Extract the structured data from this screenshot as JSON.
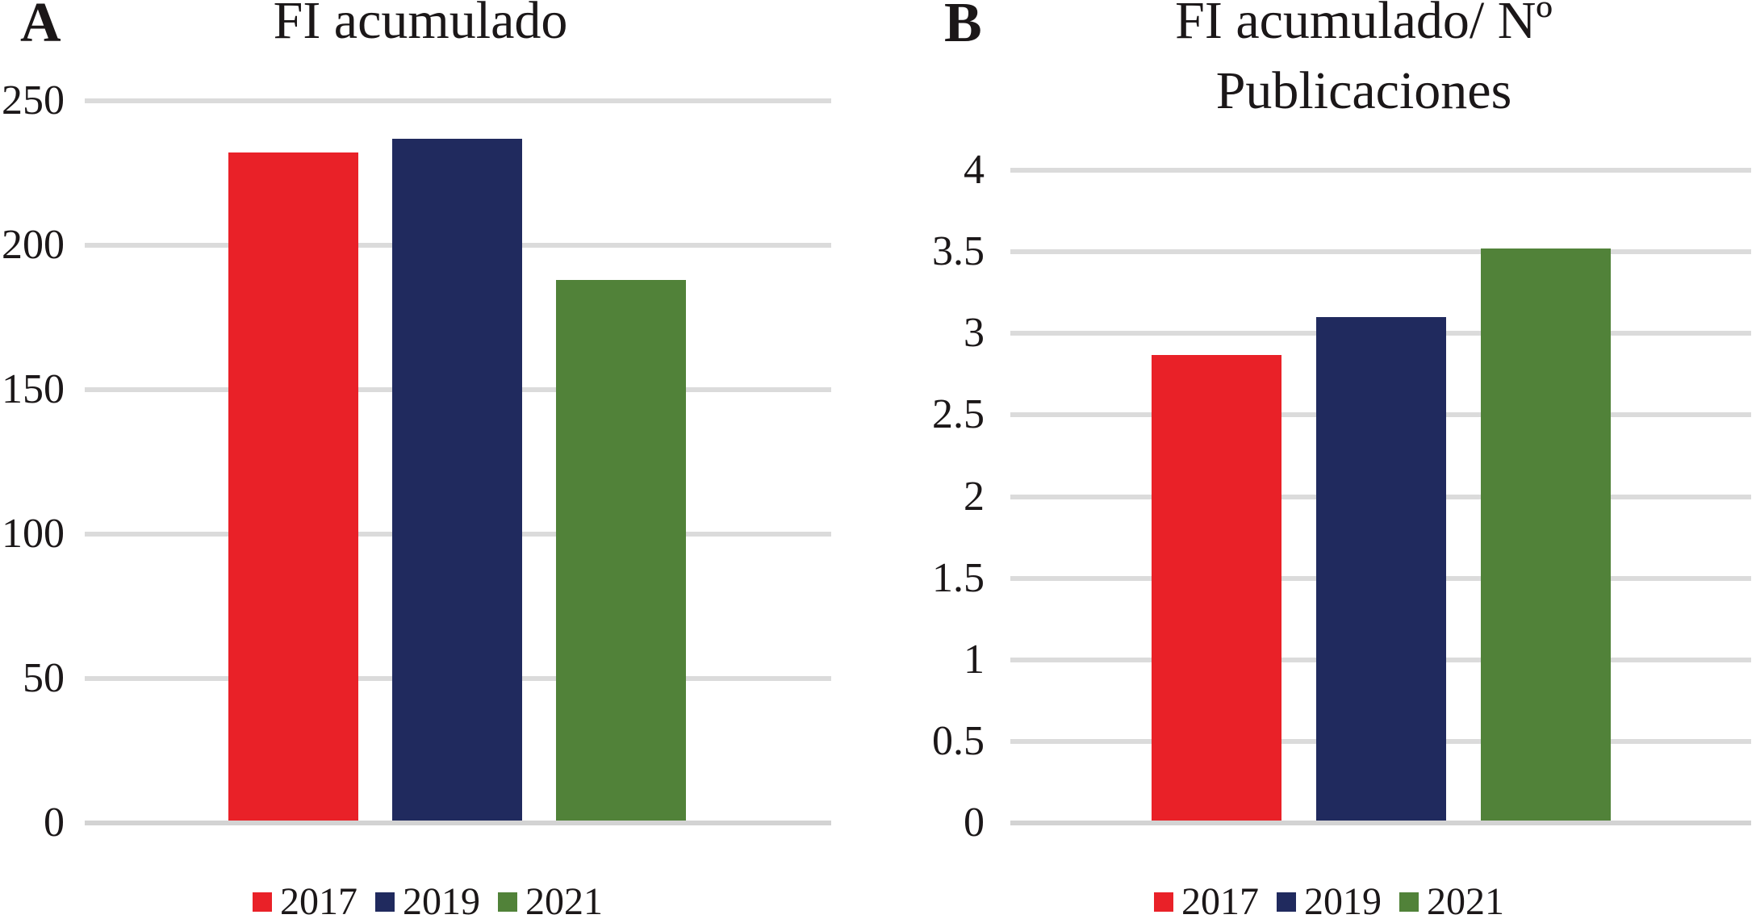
{
  "figure_type": "two-panel grouped bar figure",
  "chart_data": [
    {
      "type": "bar",
      "panel_label": "A",
      "title": "FI acumulado",
      "title_lines": [
        "FI acumulado"
      ],
      "categories": [
        "2017",
        "2019",
        "2021"
      ],
      "values": [
        232,
        237,
        188
      ],
      "ylim": [
        0,
        250
      ],
      "ystep": 50,
      "y_tick_labels": [
        "0",
        "50",
        "100",
        "150",
        "200",
        "250"
      ],
      "xlabel": "",
      "ylabel": "",
      "grid": "horizontal",
      "legend_position": "bottom"
    },
    {
      "type": "bar",
      "panel_label": "B",
      "title": "FI acumulado/ Nº Publicaciones",
      "title_lines": [
        "FI acumulado/ Nº",
        "Publicaciones"
      ],
      "categories": [
        "2017",
        "2019",
        "2021"
      ],
      "values": [
        2.87,
        3.1,
        3.52
      ],
      "ylim": [
        0,
        4
      ],
      "ystep": 0.5,
      "y_tick_labels": [
        "0",
        "0.5",
        "1",
        "1.5",
        "2",
        "2.5",
        "3",
        "3.5",
        "4"
      ],
      "xlabel": "",
      "ylabel": "",
      "grid": "horizontal",
      "legend_position": "bottom"
    }
  ],
  "series_colors": {
    "2017": "#E92128",
    "2019": "#202A5E",
    "2021": "#518239"
  },
  "style": {
    "gridline_color": "#DBDBDB",
    "baseline_color": "#D3D3D3",
    "text_color": "#1B1718",
    "background": "#FFFFFF"
  }
}
